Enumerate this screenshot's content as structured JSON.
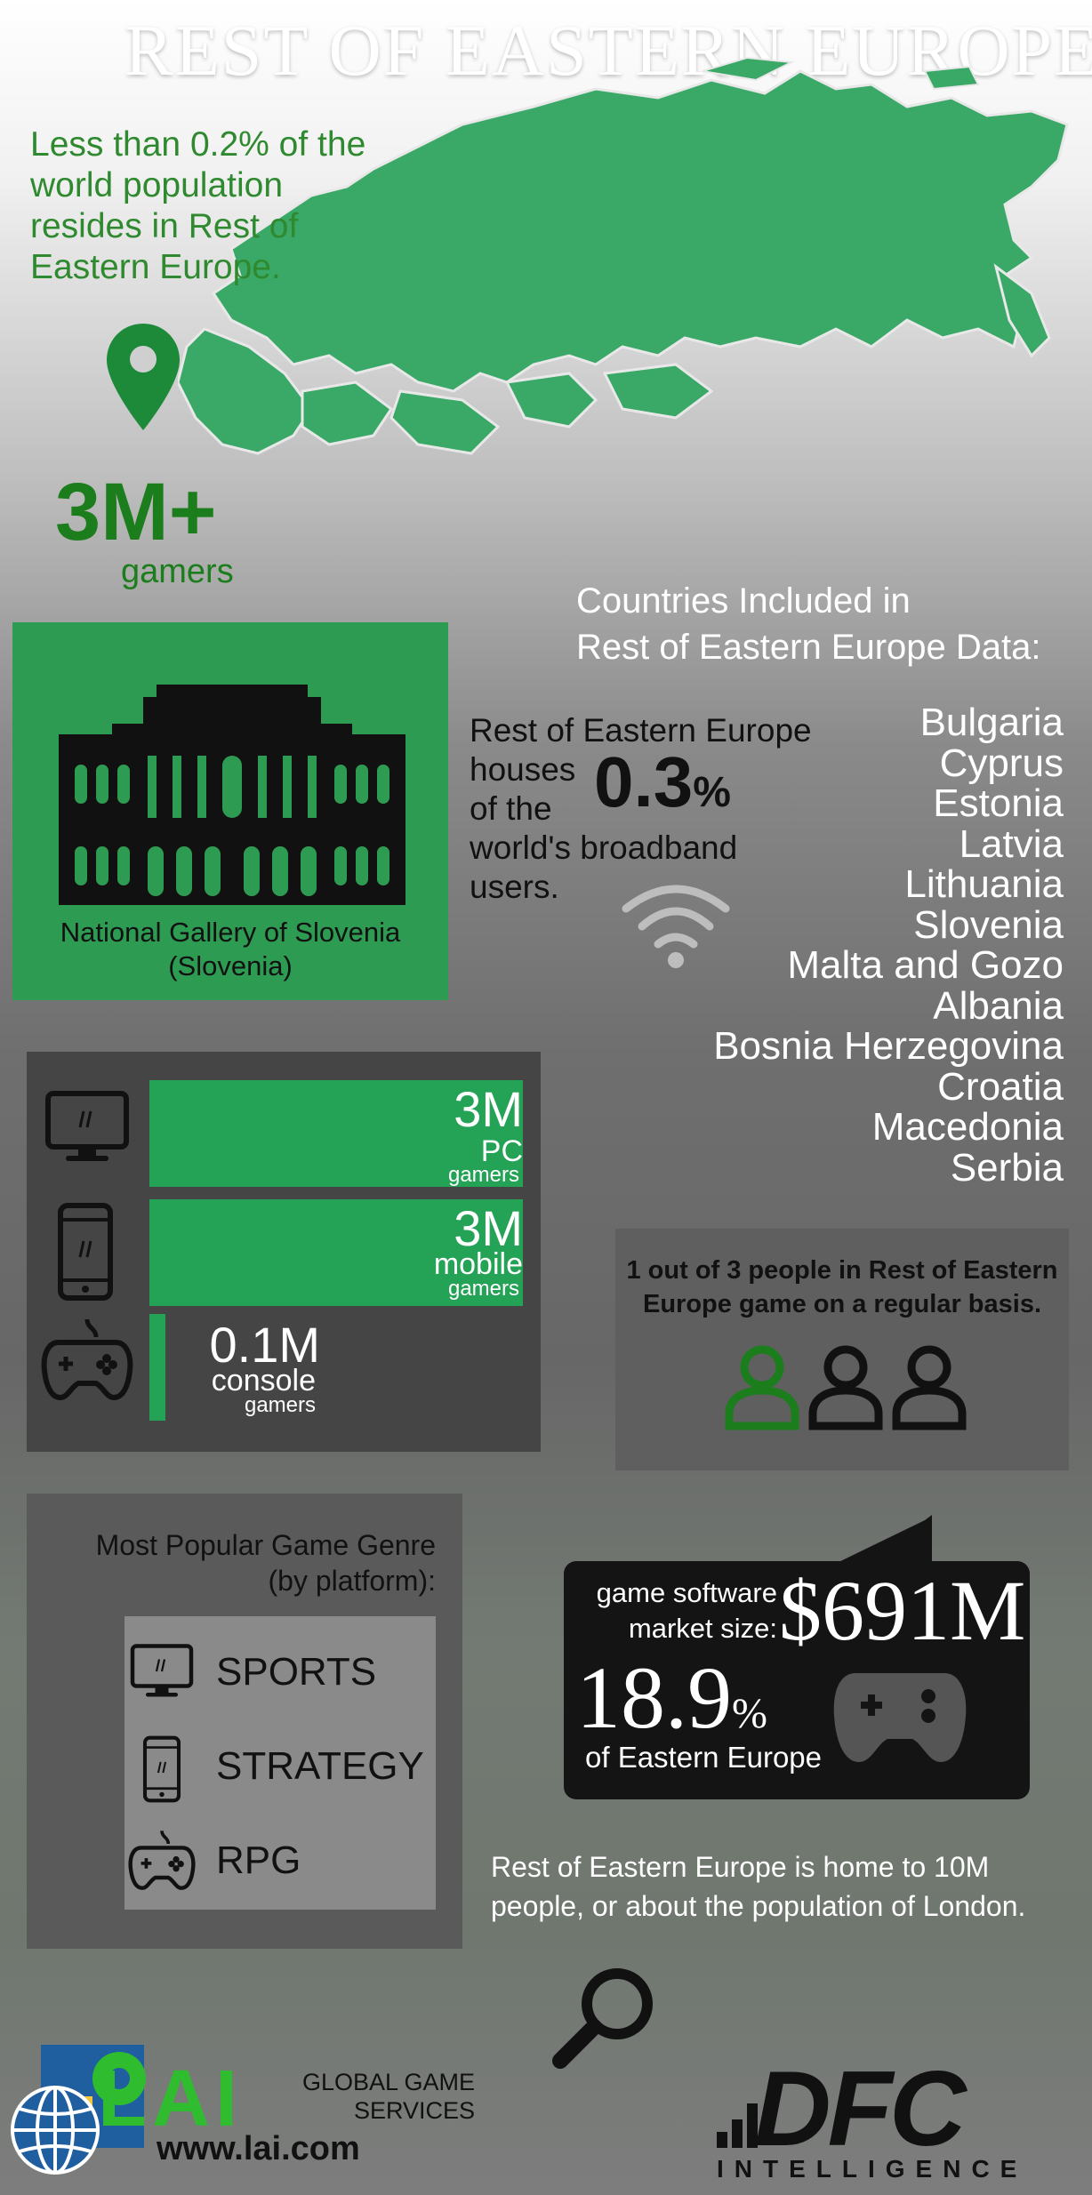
{
  "title": "REST OF EASTERN EUROPE",
  "intro_text": "Less than 0.2% of the world population resides in Rest of Eastern Europe.",
  "gamers_total": "3M+",
  "gamers_word": "gamers",
  "countries_heading_line1": "Countries Included in",
  "countries_heading_line2": "Rest of Eastern Europe Data:",
  "countries": [
    "Bulgaria",
    "Cyprus",
    "Estonia",
    "Latvia",
    "Lithuania",
    "Slovenia",
    "Malta and Gozo",
    "Albania",
    "Bosnia Herzegovina",
    "Croatia",
    "Macedonia",
    "Serbia"
  ],
  "landmark_caption_line1": "National Gallery of Slovenia",
  "landmark_caption_line2": "(Slovenia)",
  "broadband_text_line1": "Rest of Eastern Europe",
  "broadband_text_line2": "houses",
  "broadband_text_line3": "of the",
  "broadband_text_line4": "world's broadband",
  "broadband_text_line5": "users.",
  "broadband_pct": "0.3",
  "broadband_pct_sign": "%",
  "platforms": [
    {
      "value": "3M",
      "label": "PC",
      "sub": "gamers",
      "fill": 1.0
    },
    {
      "value": "3M",
      "label": "mobile",
      "sub": "gamers",
      "fill": 1.0
    },
    {
      "value": "0.1M",
      "label": "console",
      "sub": "gamers",
      "fill": 0.033
    }
  ],
  "ratio_text_line1": "1 out of 3 people in Rest of Eastern",
  "ratio_text_line2": "Europe game on a regular basis.",
  "ratio": {
    "highlighted": 1,
    "total": 3
  },
  "genre_title_line1": "Most Popular Game Genre",
  "genre_title_line2": "(by platform):",
  "genres": [
    {
      "platform_icon": "monitor-icon",
      "genre": "SPORTS"
    },
    {
      "platform_icon": "phone-icon",
      "genre": "STRATEGY"
    },
    {
      "platform_icon": "gamepad-icon",
      "genre": "RPG"
    }
  ],
  "market_label_line1": "game software",
  "market_label_line2": "market size:",
  "market_value": "$691M",
  "market_share": "18.9",
  "market_share_sign": "%",
  "market_share_sub": "of Eastern Europe",
  "population_text_line1": "Rest of Eastern Europe is home to 10M",
  "population_text_line2": "people, or about the population of London.",
  "lai_logo": "LAI",
  "lai_tag_line1": "GLOBAL GAME",
  "lai_tag_line2": "SERVICES",
  "lai_url": "www.lai.com",
  "dfc_logo": "DFC",
  "dfc_sub": "INTELLIGENCE",
  "colors": {
    "accent_green": "#24a255",
    "dark_green": "#1b7d1b",
    "panel_dark": "#454545",
    "text_dark": "#111111"
  }
}
